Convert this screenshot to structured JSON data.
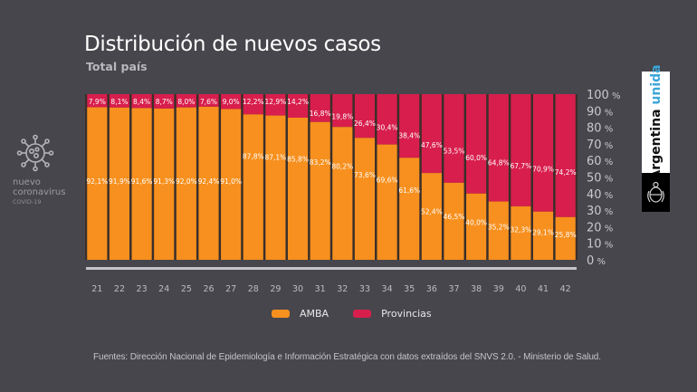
{
  "header": {
    "title": "Distribución de nuevos casos",
    "subtitle": "Total país"
  },
  "side_logo": {
    "line1": "nuevo",
    "line2": "coronavirus",
    "line3": "COVID-19",
    "icon": "virus-icon"
  },
  "brand": {
    "word1": "Argentina",
    "word2": "unida",
    "accent": "#3ba6d9",
    "emblem_icon": "coat-of-arms-icon"
  },
  "colors": {
    "background": "#47464c",
    "amba": "#f7901e",
    "provincias": "#d81e4d",
    "axis_text": "#c9c8cd",
    "baseline": "#c4c3c9"
  },
  "source": "Fuentes: Dirección Nacional de Epidemiología e Información Estratégica con datos extraídos del SNVS 2.0. - Ministerio de Salud.",
  "chart_data": {
    "type": "bar",
    "stacked": true,
    "title": "Distribución de nuevos casos",
    "subtitle": "Total país",
    "xlabel": "",
    "ylabel": "",
    "ylim": [
      0,
      100
    ],
    "y_ticks": [
      "0%",
      "10%",
      "20%",
      "30%",
      "40%",
      "50%",
      "60%",
      "70%",
      "80%",
      "90%",
      "100%"
    ],
    "y_axis_position": "right",
    "grid": false,
    "legend_position": "bottom-center",
    "categories": [
      "21",
      "22",
      "23",
      "24",
      "25",
      "26",
      "27",
      "28",
      "29",
      "30",
      "31",
      "32",
      "33",
      "34",
      "35",
      "36",
      "37",
      "38",
      "39",
      "40",
      "41",
      "42"
    ],
    "series": [
      {
        "name": "AMBA",
        "color": "#f7901e",
        "values": [
          92.1,
          91.9,
          91.6,
          91.3,
          92.0,
          92.4,
          91.0,
          87.8,
          87.1,
          85.8,
          83.2,
          80.2,
          73.6,
          69.6,
          61.6,
          52.4,
          46.5,
          40.0,
          35.2,
          32.3,
          29.1,
          25.8
        ],
        "labels": [
          "92,1%",
          "91,9%",
          "91,6%",
          "91,3%",
          "92,0%",
          "92,4%",
          "91,0%",
          "87,8%",
          "87,1%",
          "85,8%",
          "83,2%",
          "80,2%",
          "73,6%",
          "69,6%",
          "61,6%",
          "52,4%",
          "46,5%",
          "40,0%",
          "35,2%",
          "32,3%",
          "29,1%",
          "25,8%"
        ]
      },
      {
        "name": "Provincias",
        "color": "#d81e4d",
        "values": [
          7.9,
          8.1,
          8.4,
          8.7,
          8.0,
          7.6,
          9.0,
          12.2,
          12.9,
          14.2,
          16.8,
          19.8,
          26.4,
          30.4,
          38.4,
          47.6,
          53.5,
          60.0,
          64.8,
          67.7,
          70.9,
          74.2
        ],
        "labels": [
          "7,9%",
          "8,1%",
          "8,4%",
          "8,7%",
          "8,0%",
          "7,6%",
          "9,0%",
          "12,2%",
          "12,9%",
          "14,2%",
          "16,8%",
          "19,8%",
          "26,4%",
          "30,4%",
          "38,4%",
          "47,6%",
          "53,5%",
          "60,0%",
          "64,8%",
          "67,7%",
          "70,9%",
          "74,2%"
        ]
      }
    ]
  }
}
